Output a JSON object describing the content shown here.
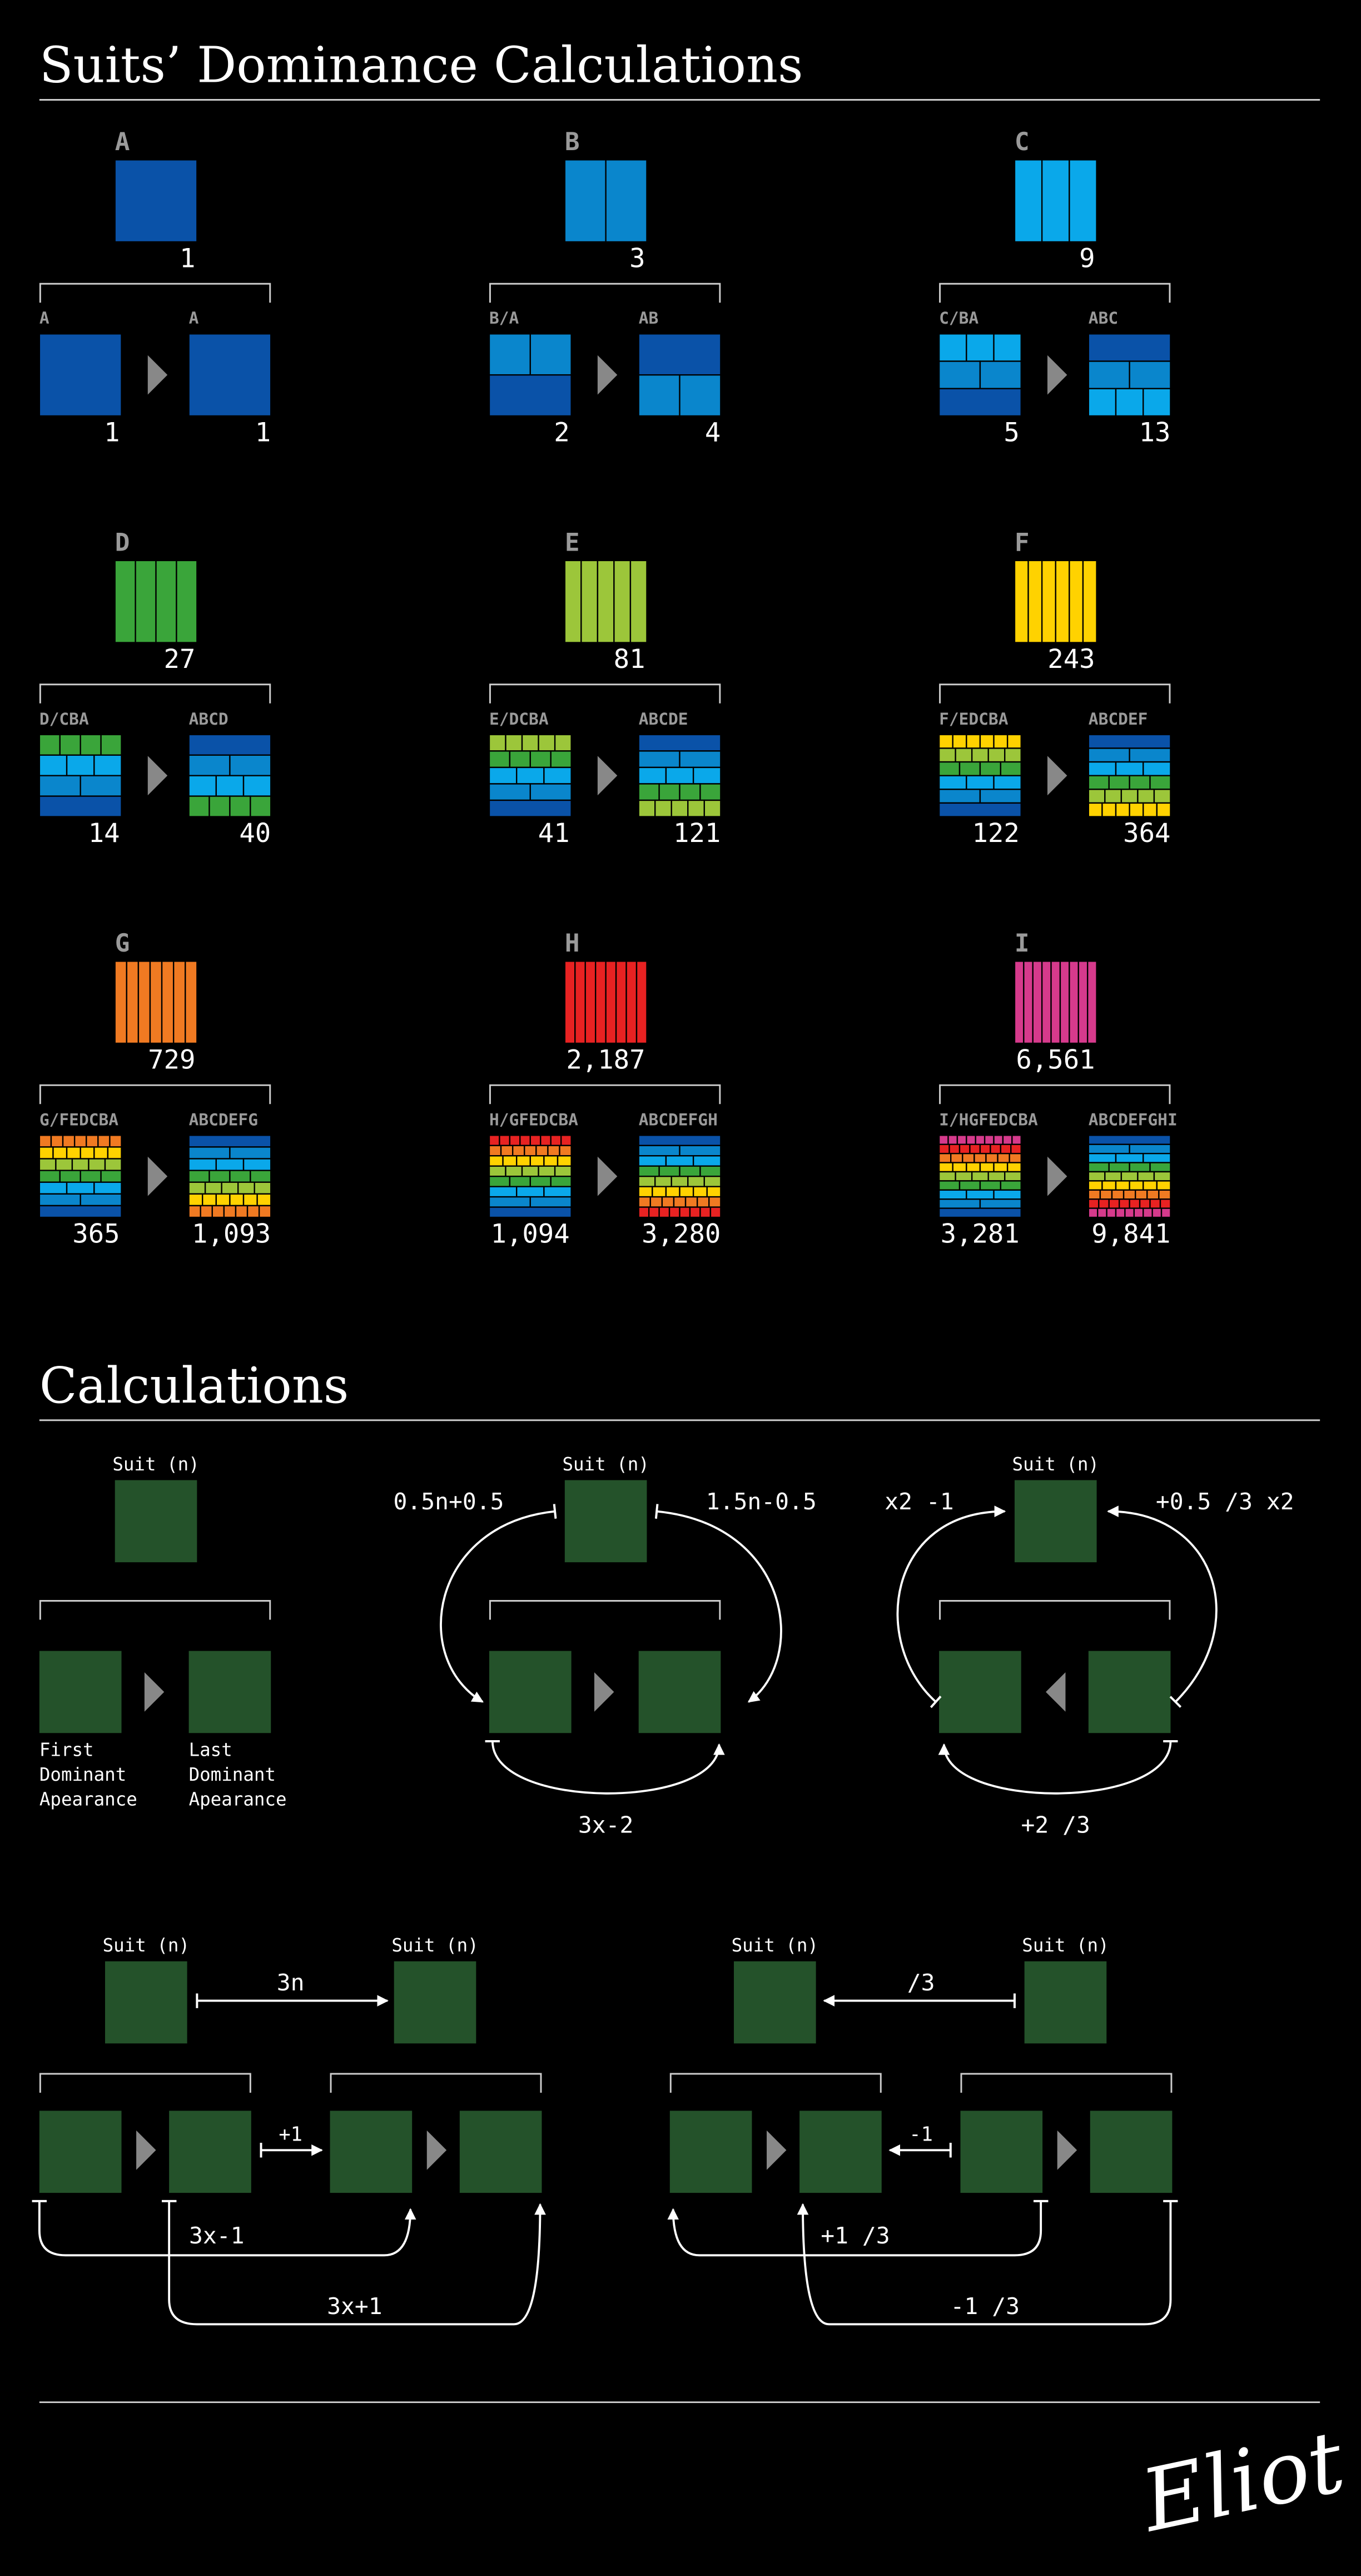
{
  "title": "Suits’ Dominance Calculations",
  "suits": [
    {
      "letter": "A",
      "color": "#0a52a8",
      "count": "1",
      "first": {
        "label": "A",
        "value": "1"
      },
      "last": {
        "label": "A",
        "value": "1"
      }
    },
    {
      "letter": "B",
      "color": "#0a86cc",
      "count": "3",
      "first": {
        "label": "B/A",
        "value": "2"
      },
      "last": {
        "label": "AB",
        "value": "4"
      }
    },
    {
      "letter": "C",
      "color": "#0aa8ea",
      "count": "9",
      "first": {
        "label": "C/BA",
        "value": "5"
      },
      "last": {
        "label": "ABC",
        "value": "13"
      }
    },
    {
      "letter": "D",
      "color": "#3aa53a",
      "count": "27",
      "first": {
        "label": "D/CBA",
        "value": "14"
      },
      "last": {
        "label": "ABCD",
        "value": "40"
      }
    },
    {
      "letter": "E",
      "color": "#9cc63a",
      "count": "81",
      "first": {
        "label": "E/DCBA",
        "value": "41"
      },
      "last": {
        "label": "ABCDE",
        "value": "121"
      }
    },
    {
      "letter": "F",
      "color": "#ffd200",
      "count": "243",
      "first": {
        "label": "F/EDCBA",
        "value": "122"
      },
      "last": {
        "label": "ABCDEF",
        "value": "364"
      }
    },
    {
      "letter": "G",
      "color": "#f07a22",
      "count": "729",
      "first": {
        "label": "G/FEDCBA",
        "value": "365"
      },
      "last": {
        "label": "ABCDEFG",
        "value": "1,093"
      }
    },
    {
      "letter": "H",
      "color": "#e82222",
      "count": "2,187",
      "first": {
        "label": "H/GFEDCBA",
        "value": "1,094"
      },
      "last": {
        "label": "ABCDEFGH",
        "value": "3,280"
      }
    },
    {
      "letter": "I",
      "color": "#d63a8c",
      "count": "6,561",
      "first": {
        "label": "I/HGFEDCBA",
        "value": "3,281"
      },
      "last": {
        "label": "ABCDEFGHI",
        "value": "9,841"
      }
    }
  ],
  "calculations": {
    "title": "Calculations",
    "suit_label": "Suit (n)",
    "first_label": [
      "First",
      "Dominant",
      "Apearance"
    ],
    "last_label": [
      "Last",
      "Dominant",
      "Apearance"
    ],
    "formulas": {
      "first_from_suit": "0.5n+0.5",
      "last_from_suit": "1.5n-0.5",
      "last_from_first": "3x-2",
      "suit_from_first": "x2 -1",
      "suit_from_last": "+0.5 /3 x2",
      "first_from_last": "+2 /3",
      "next_suit": "3n",
      "next_first": "+1",
      "next_first_from_first": "3x-1",
      "next_last_from_first": "3x+1",
      "prev_suit": "/3",
      "prev_last": "-1",
      "prev_first": "+1 /3",
      "prev_first_from_last": "-1 /3"
    }
  },
  "signature": "Eliot"
}
